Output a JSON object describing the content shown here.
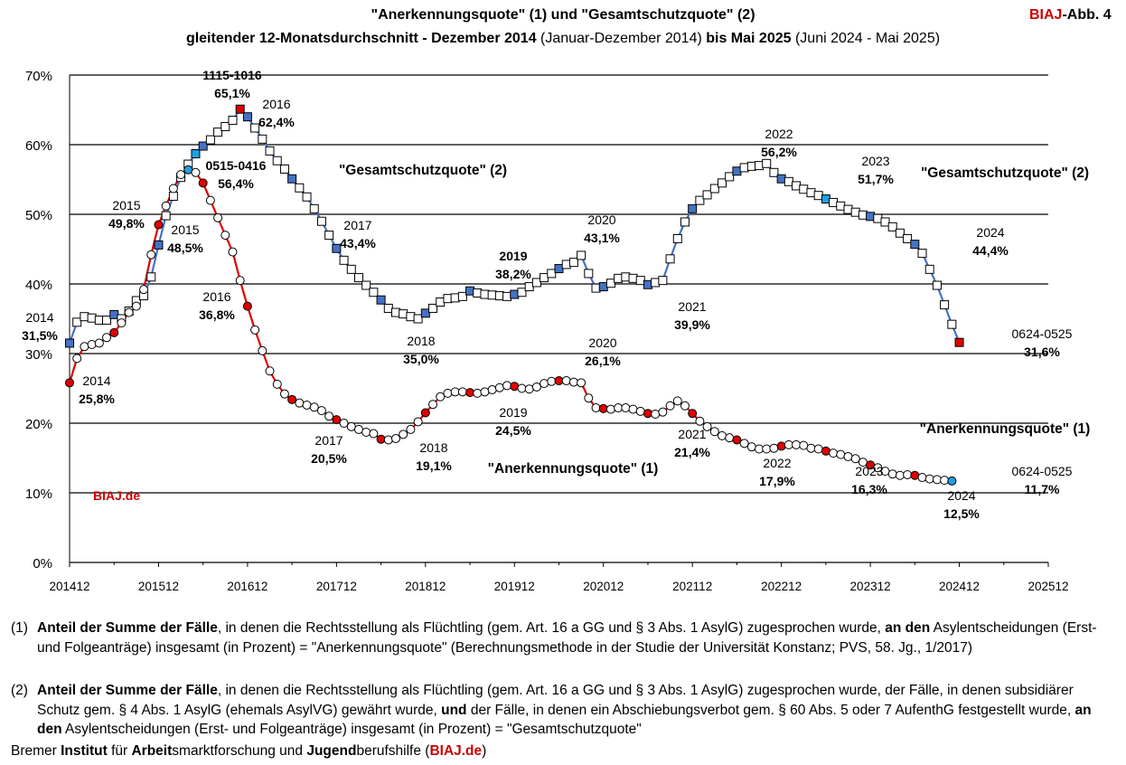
{
  "title": {
    "line1": "\"Anerkennungsquote\" (1) und \"Gesamtschutzquote\" (2)",
    "line2_a": "gleitender 12-Monatsdurchschnitt - Dezember 2014",
    "line2_b": " (Januar-Dezember 2014) ",
    "line2_c": "bis Mai 2025",
    "line2_d": " (Juni 2024 - Mai 2025)"
  },
  "badge": {
    "red": "BIAJ",
    "rest": "-Abb. 4"
  },
  "chart_data": {
    "type": "line",
    "title": "\"Anerkennungsquote\" (1) und \"Gesamtschutzquote\" (2)",
    "xlabel": "",
    "ylabel": "",
    "ylim": [
      0,
      70
    ],
    "x_ticks": [
      "201412",
      "201512",
      "201612",
      "201712",
      "201812",
      "201912",
      "202012",
      "202112",
      "202212",
      "202312",
      "202412",
      "202512"
    ],
    "y_ticks": [
      "0%",
      "10%",
      "20%",
      "30%",
      "40%",
      "50%",
      "60%",
      "70%"
    ],
    "grid": "horizontal",
    "series": [
      {
        "name": "\"Gesamtschutzquote\" (2)",
        "color": "#4472c4",
        "marker": "square",
        "start": "201412",
        "values": [
          31.5,
          34.5,
          35.3,
          35.1,
          34.8,
          34.8,
          35.6,
          35.0,
          36.1,
          37.6,
          38.3,
          41.0,
          45.6,
          49.8,
          52.6,
          55.3,
          57.2,
          58.7,
          59.8,
          60.7,
          61.8,
          62.6,
          63.5,
          65.1,
          64.0,
          62.4,
          60.8,
          59.1,
          57.7,
          56.5,
          55.1,
          53.8,
          52.5,
          50.8,
          49.0,
          47.0,
          45.1,
          43.4,
          42.1,
          40.9,
          39.8,
          38.8,
          37.7,
          36.5,
          35.9,
          35.7,
          35.3,
          35.0,
          35.8,
          36.5,
          37.4,
          37.9,
          38.0,
          38.2,
          39.0,
          38.7,
          38.5,
          38.4,
          38.3,
          38.2,
          38.5,
          38.8,
          39.6,
          40.2,
          40.9,
          41.5,
          42.2,
          42.8,
          43.1,
          44.1,
          41.5,
          39.4,
          39.6,
          40.1,
          40.8,
          41.0,
          40.8,
          40.5,
          39.9,
          40.2,
          40.5,
          43.6,
          46.5,
          48.9,
          50.8,
          52.0,
          52.8,
          53.7,
          54.5,
          55.4,
          56.2,
          56.7,
          56.9,
          57.0,
          57.3,
          56.0,
          55.1,
          54.7,
          54.1,
          53.6,
          53.1,
          52.7,
          52.2,
          51.7,
          51.2,
          50.7,
          50.3,
          49.9,
          49.7,
          49.4,
          48.9,
          48.2,
          47.3,
          46.5,
          45.7,
          44.4,
          42.1,
          39.8,
          37.0,
          34.2,
          31.6
        ],
        "annotations": [
          {
            "label": "2014",
            "value": "31,5%"
          },
          {
            "label": "2015",
            "value": "49,8%"
          },
          {
            "label": "0515-0416",
            "value": "56,4%"
          },
          {
            "label": "1115-1016",
            "value": "65,1%"
          },
          {
            "label": "2016",
            "value": "62,4%"
          },
          {
            "label": "2017",
            "value": "43,4%"
          },
          {
            "label": "2018",
            "value": "35,0%"
          },
          {
            "label": "2019",
            "value": "38,2%"
          },
          {
            "label": "2020",
            "value": "43,1%"
          },
          {
            "label": "2021",
            "value": "39,9%"
          },
          {
            "label": "2022",
            "value": "56,2%"
          },
          {
            "label": "2023",
            "value": "51,7%"
          },
          {
            "label": "2024",
            "value": "44,4%"
          },
          {
            "label": "0624-0525",
            "value": "31,6%"
          }
        ]
      },
      {
        "name": "\"Anerkennungsquote\" (1)",
        "color": "#e00000",
        "marker": "circle",
        "start": "201412",
        "values": [
          25.8,
          29.3,
          31.0,
          31.3,
          31.5,
          32.3,
          33.0,
          34.4,
          35.9,
          36.8,
          39.2,
          44.2,
          48.5,
          51.2,
          53.7,
          55.7,
          56.4,
          56.0,
          54.5,
          52.0,
          49.5,
          47.0,
          44.6,
          40.5,
          36.8,
          33.4,
          30.4,
          27.5,
          25.6,
          24.2,
          23.4,
          22.9,
          22.6,
          22.3,
          21.8,
          21.0,
          20.5,
          20.0,
          19.5,
          19.1,
          18.7,
          18.5,
          17.7,
          17.6,
          17.8,
          18.4,
          19.1,
          20.2,
          21.5,
          22.7,
          23.8,
          24.3,
          24.5,
          24.5,
          24.4,
          24.3,
          24.5,
          24.8,
          25.1,
          25.4,
          25.3,
          25.0,
          24.9,
          25.2,
          25.7,
          26.0,
          26.1,
          26.1,
          25.9,
          25.8,
          23.6,
          22.2,
          22.1,
          22.0,
          22.2,
          22.2,
          22.0,
          21.7,
          21.4,
          21.3,
          21.6,
          22.5,
          23.2,
          22.5,
          21.4,
          20.3,
          19.5,
          18.8,
          18.2,
          17.9,
          17.6,
          17.1,
          16.6,
          16.3,
          16.3,
          16.4,
          16.7,
          16.9,
          16.9,
          16.8,
          16.4,
          16.3,
          16.0,
          15.7,
          15.5,
          15.2,
          14.9,
          14.4,
          14.0,
          13.6,
          13.1,
          12.7,
          12.5,
          12.6,
          12.5,
          12.2,
          12.0,
          11.9,
          11.8,
          11.7
        ],
        "annotations": [
          {
            "label": "2014",
            "value": "25,8%"
          },
          {
            "label": "2015",
            "value": "48,5%"
          },
          {
            "label": "2016",
            "value": "36,8%"
          },
          {
            "label": "2017",
            "value": "20,5%"
          },
          {
            "label": "2018",
            "value": "19,1%"
          },
          {
            "label": "2019",
            "value": "24,5%"
          },
          {
            "label": "2020",
            "value": "26,1%"
          },
          {
            "label": "2021",
            "value": "21,4%"
          },
          {
            "label": "2022",
            "value": "17,9%"
          },
          {
            "label": "2023",
            "value": "16,3%"
          },
          {
            "label": "2024",
            "value": "12,5%"
          },
          {
            "label": "0624-0525",
            "value": "11,7%"
          }
        ]
      }
    ],
    "series_labels": [
      "\"Gesamtschutzquote\" (2)",
      "\"Gesamtschutzquote\" (2)",
      "\"Anerkennungsquote\" (1)",
      "\"Anerkennungsquote\" (1)"
    ],
    "watermark": "BIAJ.de"
  },
  "footnotes": [
    {
      "num": "(1)",
      "b1": "Anteil der Summe der Fälle",
      "t1": ", in denen die Rechtsstellung als Flüchtling (gem. Art. 16 a GG und § 3 Abs. 1 AsylG) zugesprochen wurde, ",
      "b2": "an den",
      "t2": " Asylentscheidungen (Erst- und Folgeanträge) insgesamt (in Prozent) = \"Anerkennungsquote\" (Berechnungsmethode in der Studie der Universität Konstanz; PVS, 58. Jg., 1/2017)"
    },
    {
      "num": "(2)",
      "b1": "Anteil der Summe der Fälle",
      "t1": ", in denen die Rechtsstellung als Flüchtling (gem. Art. 16 a GG und § 3 Abs. 1 AsylG) zugesprochen wurde, der Fälle, in denen subsidiärer Schutz gem. § 4 Abs. 1 AsylG (ehemals AsylVG) gewährt wurde, ",
      "b2": "und",
      "t2": " der Fälle, in denen ein Abschiebungsverbot gem. § 60 Abs. 5 oder 7 AufenthG festgestellt wurde, ",
      "b3": "an den",
      "t3": " Asylentscheidungen (Erst- und Folgeanträge) insgesamt (in Prozent) = \"Gesamtschutzquote\""
    }
  ],
  "credit": {
    "t1": "Bremer ",
    "b1": "Institut",
    "t2": " für ",
    "b2": "Arbeit",
    "t3": "smarktforschung und ",
    "b3": "Jugend",
    "t4": "berufshilfe (",
    "red": "BIAJ.de",
    "t5": ")"
  }
}
